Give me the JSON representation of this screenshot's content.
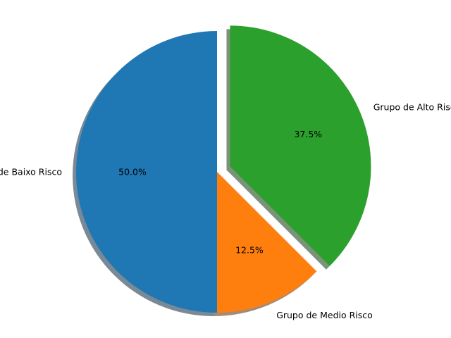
{
  "chart_data": {
    "type": "pie",
    "title": "",
    "start_angle_deg": 90,
    "direction": "counterclockwise",
    "shadow": true,
    "slices": [
      {
        "label": "Grupo de Baixo Risco",
        "value": 50.0,
        "pct_label": "50.0%",
        "color": "#1f77b4",
        "explode": 0
      },
      {
        "label": "Grupo de Medio Risco",
        "value": 12.5,
        "pct_label": "12.5%",
        "color": "#ff7f0e",
        "explode": 0
      },
      {
        "label": "Grupo de Alto Risco",
        "value": 37.5,
        "pct_label": "37.5%",
        "color": "#2ca02c",
        "explode": 0.1
      }
    ]
  }
}
